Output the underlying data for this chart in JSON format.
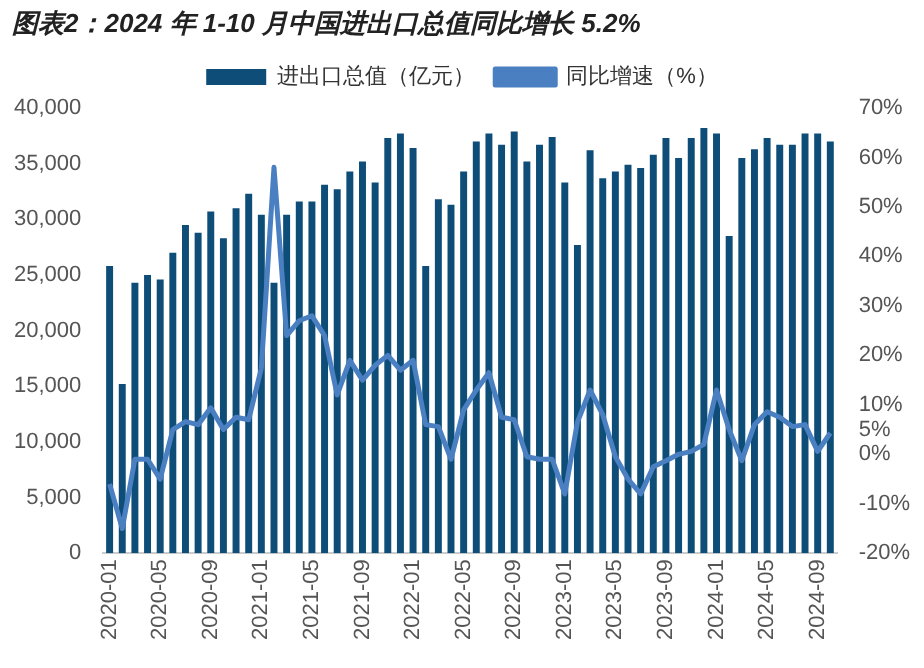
{
  "chart_data": {
    "type": "bar",
    "title": "图表2：2024 年 1-10 月中国进出口总值同比增长 5.2%",
    "categories": [
      "2020-01",
      null,
      null,
      null,
      "2020-05",
      null,
      null,
      null,
      "2020-09",
      null,
      null,
      null,
      "2021-01",
      null,
      null,
      null,
      "2021-05",
      null,
      null,
      null,
      "2021-09",
      null,
      null,
      null,
      "2022-01",
      null,
      null,
      null,
      "2022-05",
      null,
      null,
      null,
      "2022-09",
      null,
      null,
      null,
      "2023-01",
      null,
      null,
      null,
      "2023-05",
      null,
      null,
      null,
      "2023-09",
      null,
      null,
      null,
      "2024-01",
      null,
      null,
      null,
      "2024-05",
      null,
      null,
      null,
      "2024-09",
      null
    ],
    "series": [
      {
        "name": "进出口总值（亿元）",
        "color": "#0d4d78",
        "values": [
          25800,
          15200,
          24300,
          25000,
          24600,
          27000,
          29500,
          28800,
          30700,
          28300,
          31000,
          32300,
          30400,
          24300,
          30400,
          31600,
          31600,
          33100,
          32700,
          34300,
          35200,
          33300,
          37300,
          37700,
          36400,
          25800,
          31800,
          31300,
          34300,
          37000,
          37700,
          36700,
          37900,
          35200,
          36700,
          37400,
          33300,
          27700,
          36200,
          33700,
          34300,
          34900,
          34600,
          35800,
          37300,
          35500,
          37300,
          38200,
          37700,
          28500,
          35500,
          36300,
          37300,
          36700,
          36700,
          37700,
          37700,
          37000
        ]
      },
      {
        "name": "同比增速（%）",
        "type": "line",
        "axis": "y2",
        "color": "#4a7fc1",
        "values": [
          -6,
          -15,
          -1,
          -1,
          -5,
          5,
          6.6,
          6,
          9.4,
          5,
          7.5,
          7,
          17.4,
          58,
          24,
          27,
          28,
          24,
          12,
          19,
          15,
          18,
          20,
          17,
          19,
          6,
          5.6,
          -1,
          9,
          13,
          16.5,
          7.5,
          7,
          -0.5,
          -1,
          -1,
          -8,
          6.5,
          13,
          8,
          -0.5,
          -5,
          -8,
          -2.5,
          -1.3,
          0,
          0.6,
          2,
          13,
          5,
          -1.3,
          6,
          8.6,
          7.5,
          5.6,
          6,
          0.6,
          4.3
        ]
      }
    ],
    "ylim": [
      0,
      40000
    ],
    "yticks": [
      {
        "value": 0,
        "label": "0"
      },
      {
        "value": 5000,
        "label": "5,000"
      },
      {
        "value": 10000,
        "label": "10,000"
      },
      {
        "value": 15000,
        "label": "15,000"
      },
      {
        "value": 20000,
        "label": "20,000"
      },
      {
        "value": 25000,
        "label": "25,000"
      },
      {
        "value": 30000,
        "label": "30,000"
      },
      {
        "value": 35000,
        "label": "35,000"
      },
      {
        "value": 40000,
        "label": "40,000"
      }
    ],
    "y2lim": [
      -20,
      70
    ],
    "y2ticks": [
      {
        "value": -20,
        "label": "-20%"
      },
      {
        "value": -10,
        "label": "-10%"
      },
      {
        "value": 0,
        "label": "0%"
      },
      {
        "value": 5,
        "label": "5%"
      },
      {
        "value": 10,
        "label": "10%"
      },
      {
        "value": 20,
        "label": "20%"
      },
      {
        "value": 30,
        "label": "30%"
      },
      {
        "value": 40,
        "label": "40%"
      },
      {
        "value": 50,
        "label": "50%"
      },
      {
        "value": 60,
        "label": "60%"
      },
      {
        "value": 70,
        "label": "70%"
      }
    ],
    "legend": "top",
    "marker": "none",
    "line_style": "solid"
  }
}
